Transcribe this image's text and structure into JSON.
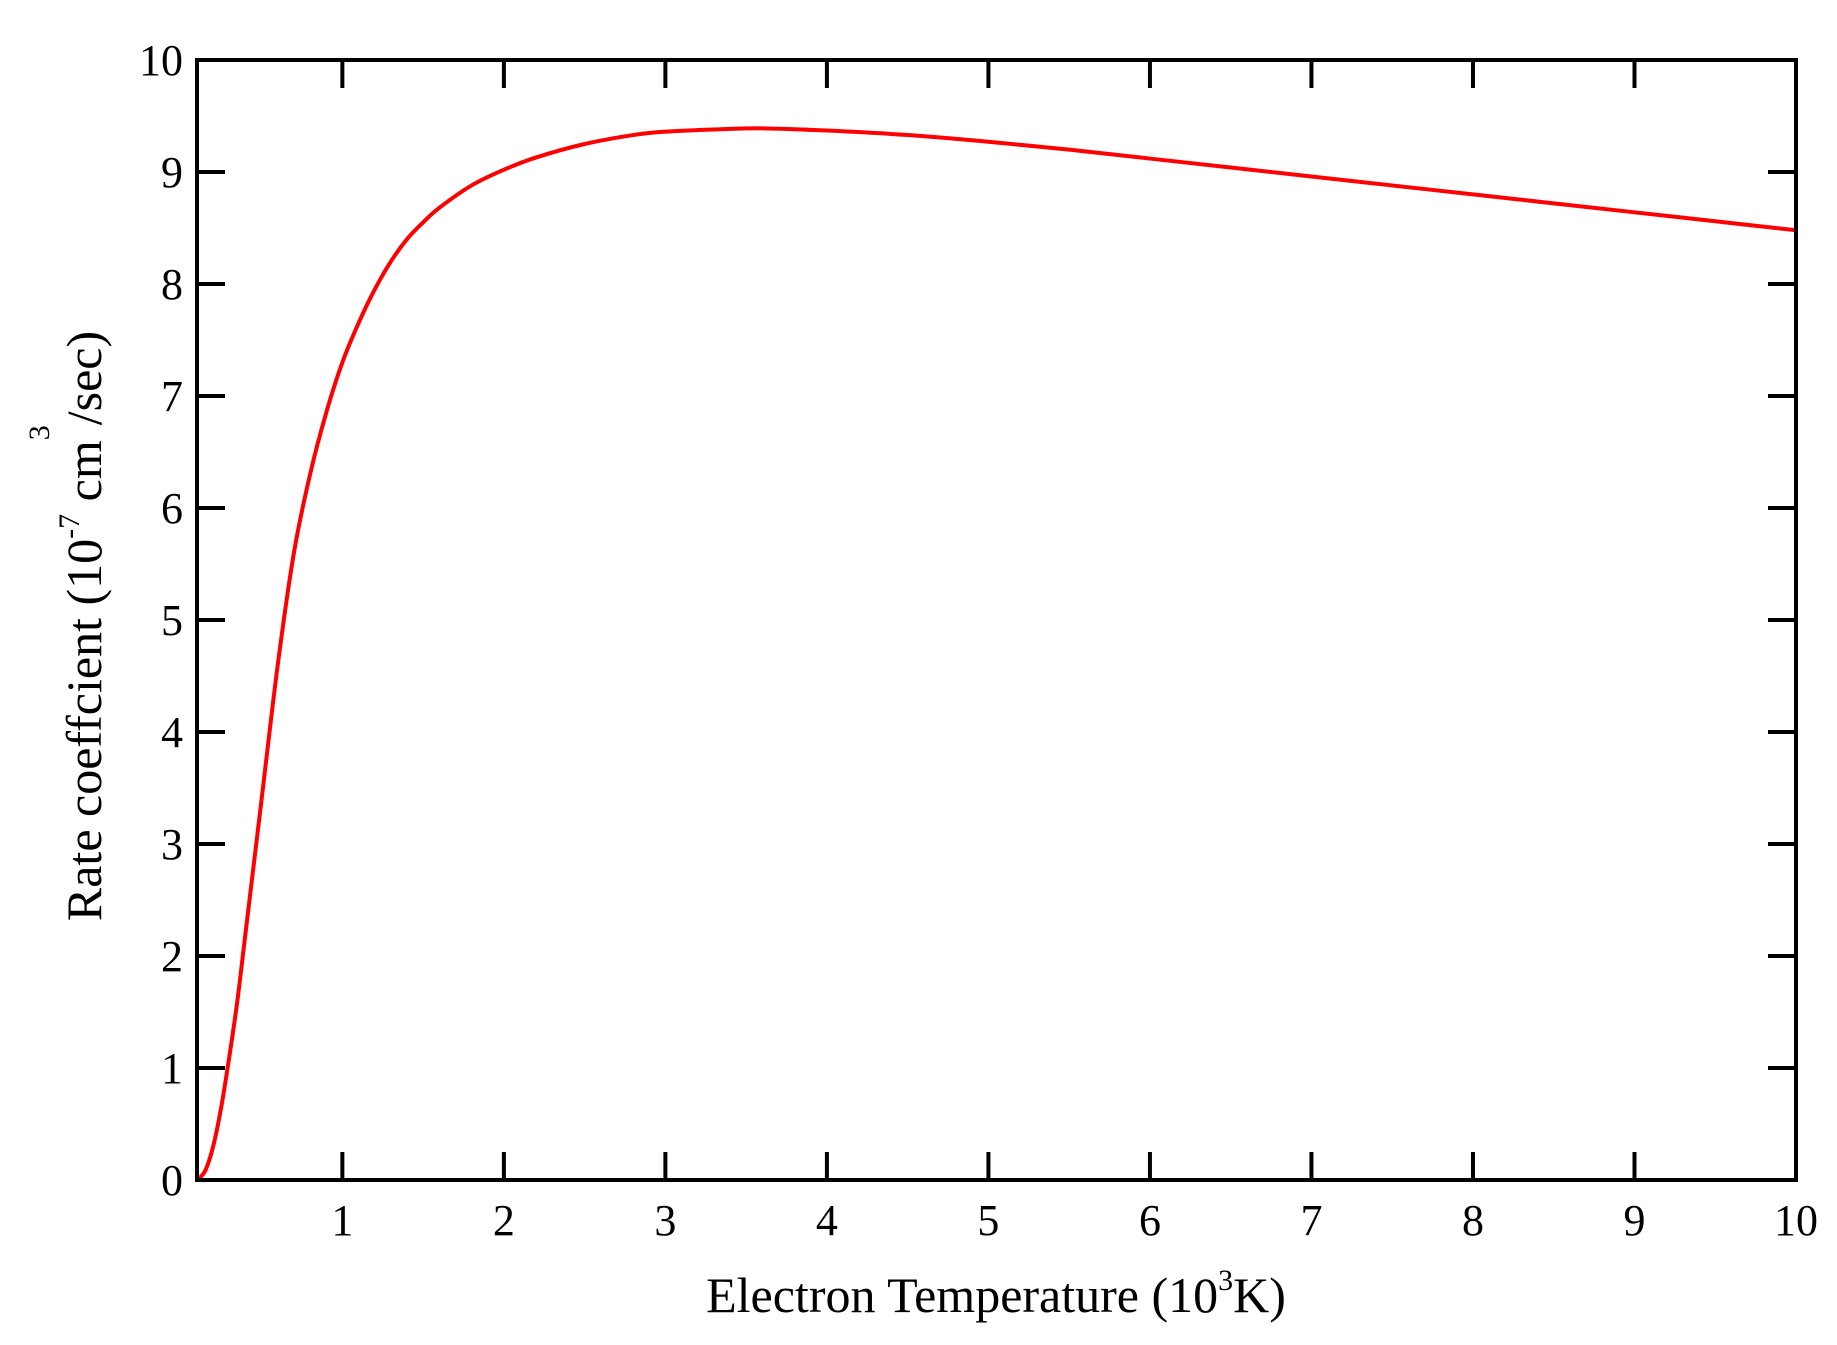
{
  "chart_data": {
    "type": "line",
    "xlabel": {
      "pre": "Electron Temperature (10",
      "sup": "3",
      "post": "K)"
    },
    "ylabel": {
      "pre": "Rate coeffcient (10",
      "sup1": "-7",
      "mid": " cm",
      "sup2": "3",
      "post": "/sec)"
    },
    "xlim": [
      0.1,
      10
    ],
    "ylim": [
      0,
      10
    ],
    "xticks": [
      "1",
      "2",
      "3",
      "4",
      "5",
      "6",
      "7",
      "8",
      "9",
      "10"
    ],
    "yticks": [
      "0",
      "1",
      "2",
      "3",
      "4",
      "5",
      "6",
      "7",
      "8",
      "9",
      "10"
    ],
    "grid": false,
    "series": [
      {
        "color": "#ff0000",
        "x": [
          0.1,
          0.15,
          0.2,
          0.25,
          0.3,
          0.35,
          0.4,
          0.5,
          0.6,
          0.7,
          0.8,
          0.9,
          1.0,
          1.1,
          1.2,
          1.3,
          1.4,
          1.5,
          1.6,
          1.8,
          2.0,
          2.2,
          2.5,
          2.8,
          3.0,
          3.3,
          3.6,
          4.0,
          4.5,
          5.0,
          5.5,
          6.0,
          6.5,
          7.0,
          7.5,
          8.0,
          8.5,
          9.0,
          9.5,
          10.0
        ],
        "y": [
          0.0,
          0.08,
          0.3,
          0.65,
          1.1,
          1.6,
          2.2,
          3.4,
          4.6,
          5.6,
          6.3,
          6.85,
          7.3,
          7.65,
          7.95,
          8.2,
          8.4,
          8.55,
          8.68,
          8.88,
          9.02,
          9.13,
          9.25,
          9.33,
          9.36,
          9.38,
          9.39,
          9.37,
          9.33,
          9.27,
          9.2,
          9.12,
          9.04,
          8.96,
          8.88,
          8.8,
          8.72,
          8.64,
          8.56,
          8.48
        ]
      }
    ]
  }
}
